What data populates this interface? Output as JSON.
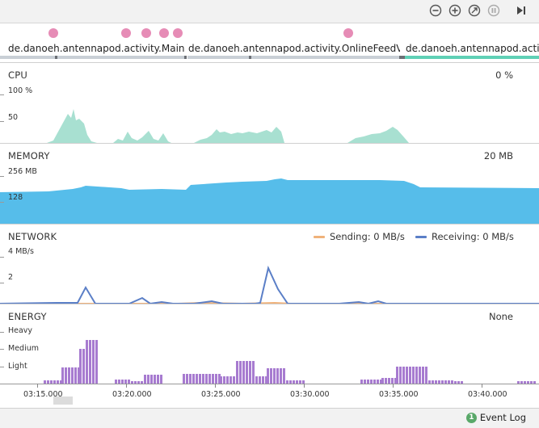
{
  "toolbar": {
    "buttons": [
      "zoom-out-icon",
      "zoom-in-icon",
      "reset-zoom-icon",
      "pause-icon",
      "go-to-live-icon"
    ]
  },
  "events": {
    "activities": [
      {
        "label": "de.danoeh.antennapod.activity.MainAc...",
        "active": false
      },
      {
        "label": "de.danoeh.antennapod.activity.OnlineFeedView...",
        "active": false
      },
      {
        "label": "de.danoeh.antennapod.activi...",
        "active": true
      }
    ],
    "dot_count": 6
  },
  "cpu": {
    "title": "CPU",
    "value": "0 %",
    "axis": [
      "100 %",
      "50"
    ]
  },
  "memory": {
    "title": "MEMORY",
    "value": "20 MB",
    "axis": [
      "256 MB",
      "128"
    ]
  },
  "network": {
    "title": "NETWORK",
    "sending_label": "Sending: 0 MB/s",
    "receiving_label": "Receiving: 0 MB/s",
    "axis": [
      "4 MB/s",
      "2"
    ]
  },
  "energy": {
    "title": "ENERGY",
    "value": "None",
    "axis": [
      "Heavy",
      "Medium",
      "Light"
    ]
  },
  "timeline": {
    "labels": [
      "03:15.000",
      "03:20.000",
      "03:25.000",
      "03:30.000",
      "03:35.000",
      "03:40.000"
    ]
  },
  "statusbar": {
    "event_count": "1",
    "event_log": "Event Log"
  },
  "colors": {
    "cpu": "#a8e0d1",
    "memory": "#56bdea",
    "sending": "#f0b27a",
    "receiving": "#5b7fc7",
    "energy": "#a77bd0",
    "event_dot": "#e68cb6"
  }
}
